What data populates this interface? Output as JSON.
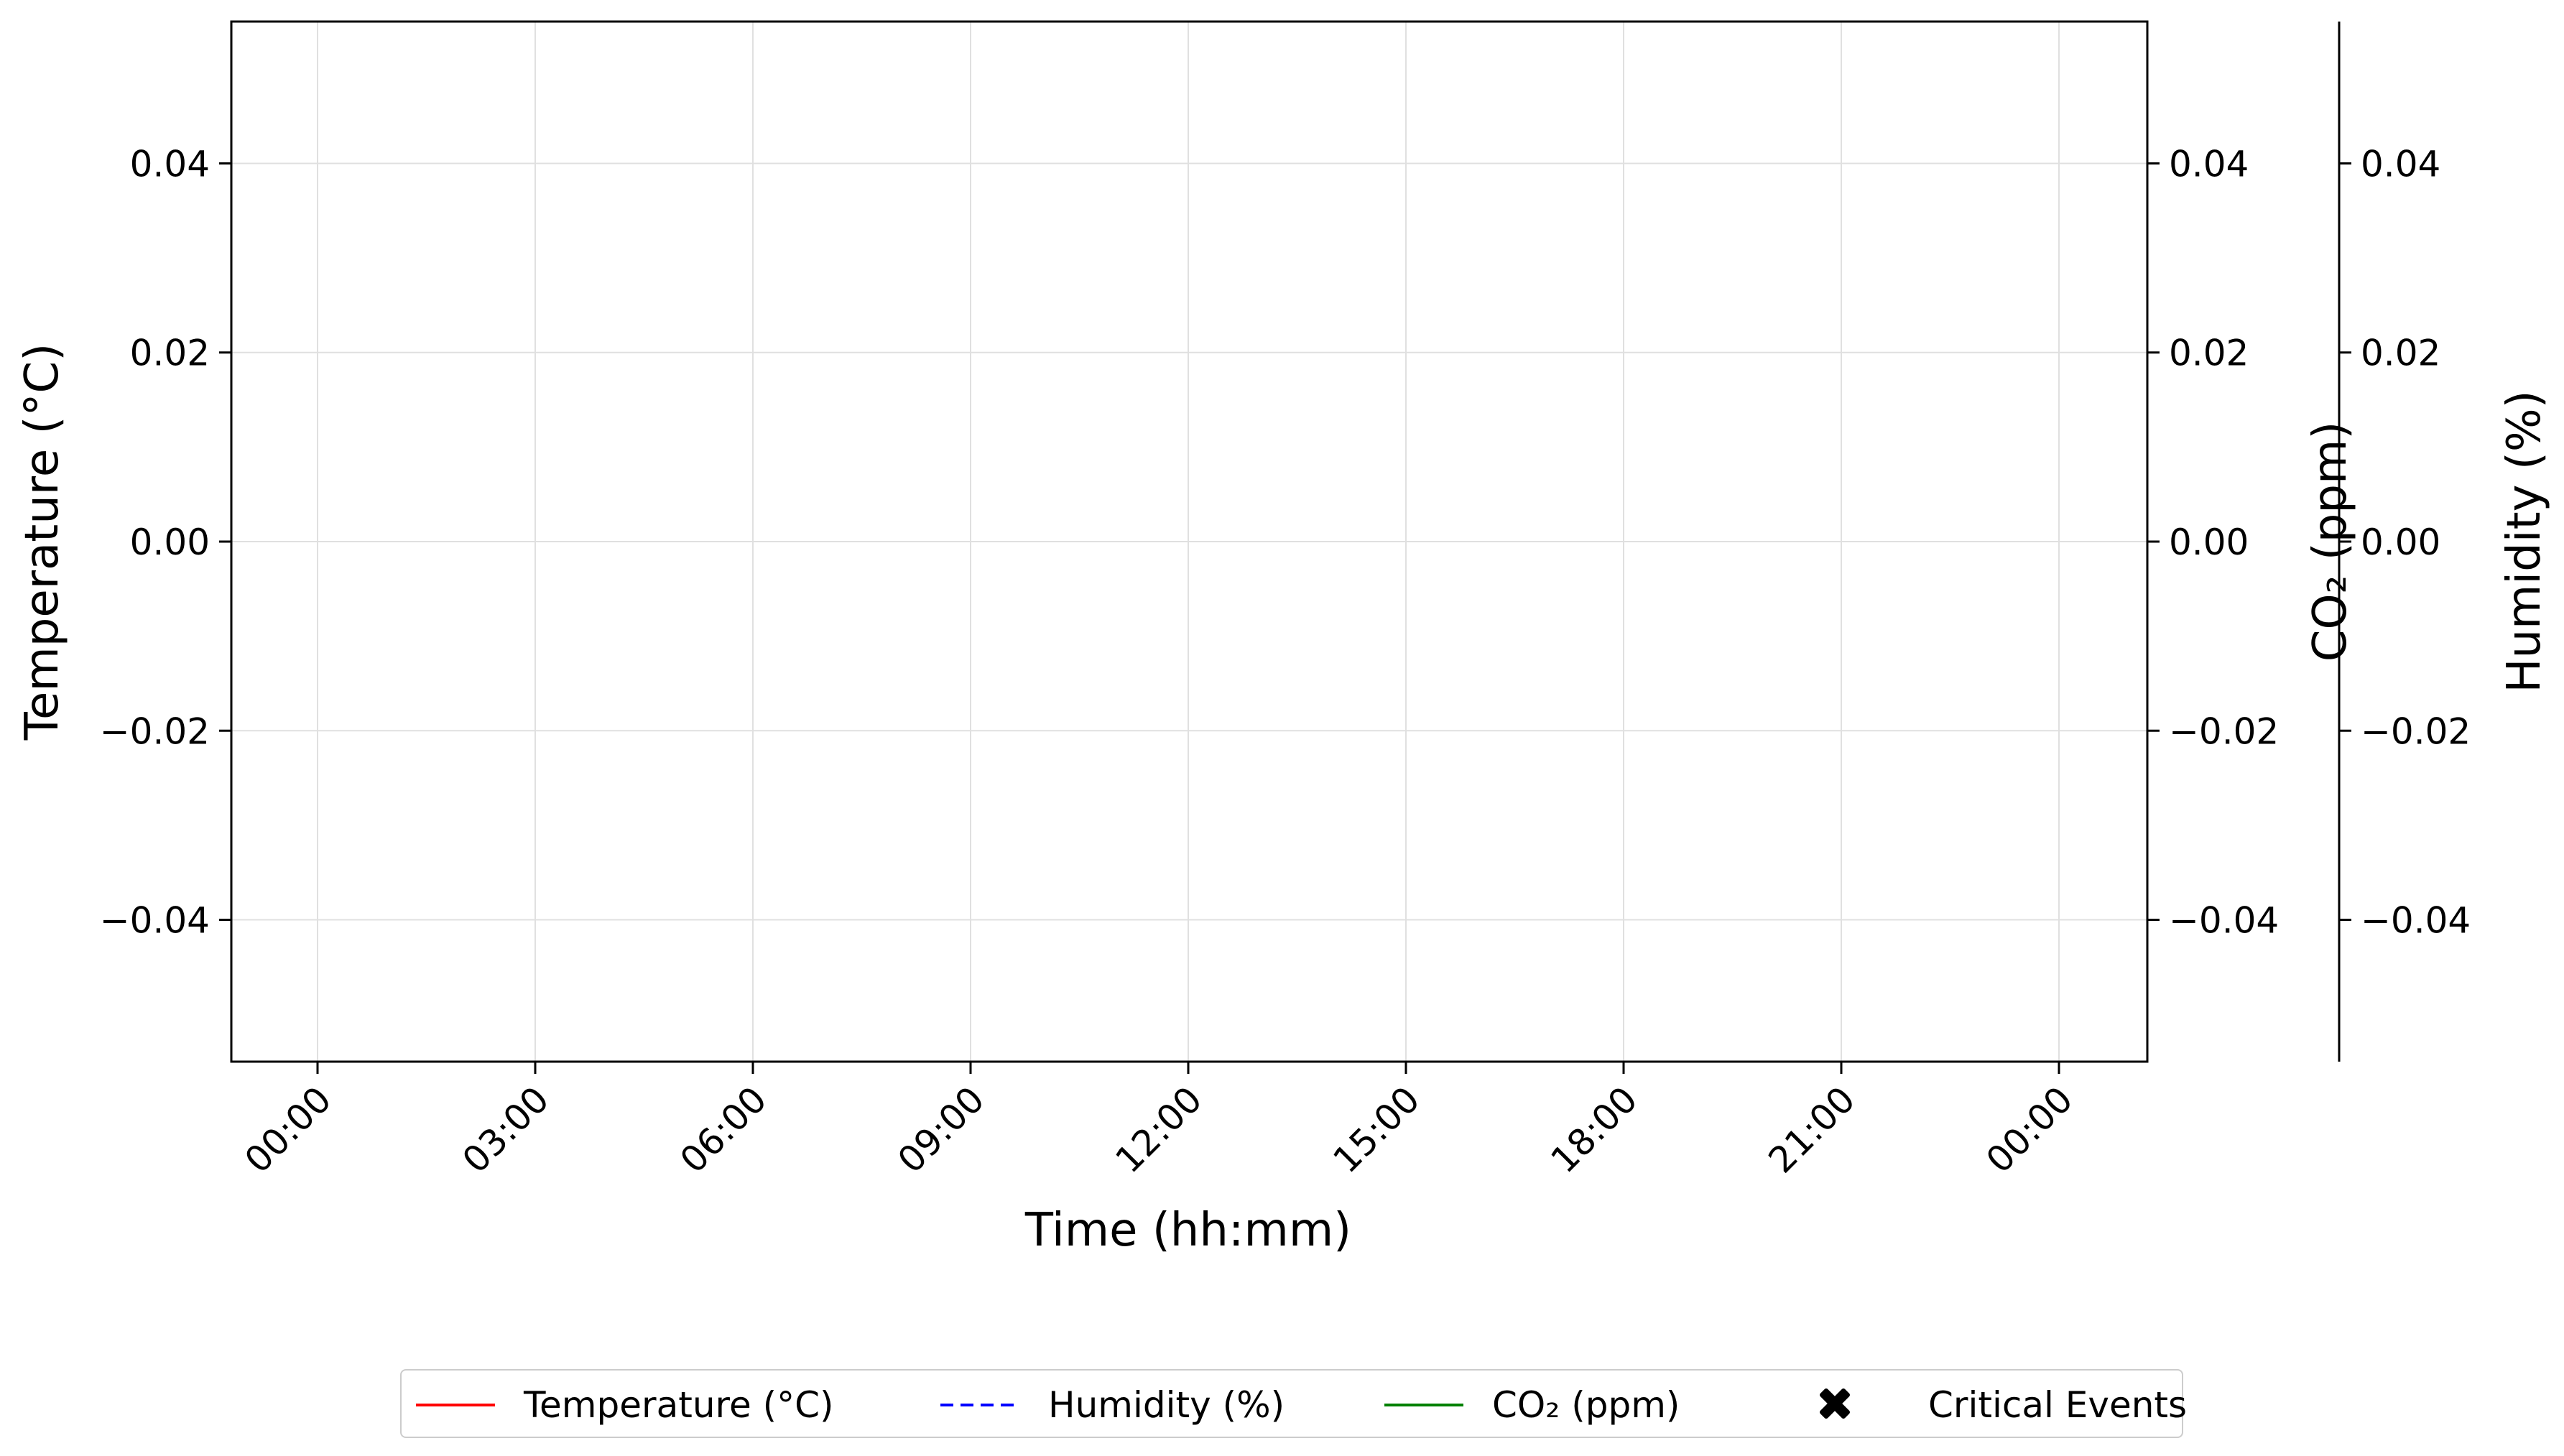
{
  "chart_data": {
    "type": "line",
    "title": "",
    "xlabel": "Time (hh:mm)",
    "x_ticks": [
      "00:00",
      "03:00",
      "06:00",
      "09:00",
      "12:00",
      "15:00",
      "18:00",
      "21:00",
      "00:00"
    ],
    "axes": {
      "left": {
        "label": "Temperature (°C)",
        "ylim": [
          -0.055,
          0.055
        ],
        "ticks": [
          "0.04",
          "0.02",
          "0.00",
          "−0.02",
          "−0.04"
        ],
        "tick_values": [
          0.04,
          0.02,
          0.0,
          -0.02,
          -0.04
        ]
      },
      "right_inner": {
        "label": "CO₂ (ppm)",
        "ylim": [
          -0.055,
          0.055
        ],
        "ticks": [
          "0.04",
          "0.02",
          "0.00",
          "−0.02",
          "−0.04"
        ],
        "tick_values": [
          0.04,
          0.02,
          0.0,
          -0.02,
          -0.04
        ]
      },
      "right_outer": {
        "label": "Humidity (%)",
        "ylim": [
          -0.055,
          0.055
        ],
        "ticks": [
          "0.04",
          "0.02",
          "0.00",
          "−0.02",
          "−0.04"
        ],
        "tick_values": [
          0.04,
          0.02,
          0.0,
          -0.02,
          -0.04
        ]
      }
    },
    "grid": true,
    "series": [
      {
        "name": "Temperature (°C)",
        "color": "#ff0000",
        "style": "solid",
        "values": []
      },
      {
        "name": "Humidity (%)",
        "color": "#0000ff",
        "style": "dashed",
        "values": []
      },
      {
        "name": "CO₂ (ppm)",
        "color": "#008000",
        "style": "solid",
        "values": []
      },
      {
        "name": "Critical Events",
        "color": "#000000",
        "style": "marker-x",
        "values": []
      }
    ],
    "legend_position": "bottom-center"
  }
}
